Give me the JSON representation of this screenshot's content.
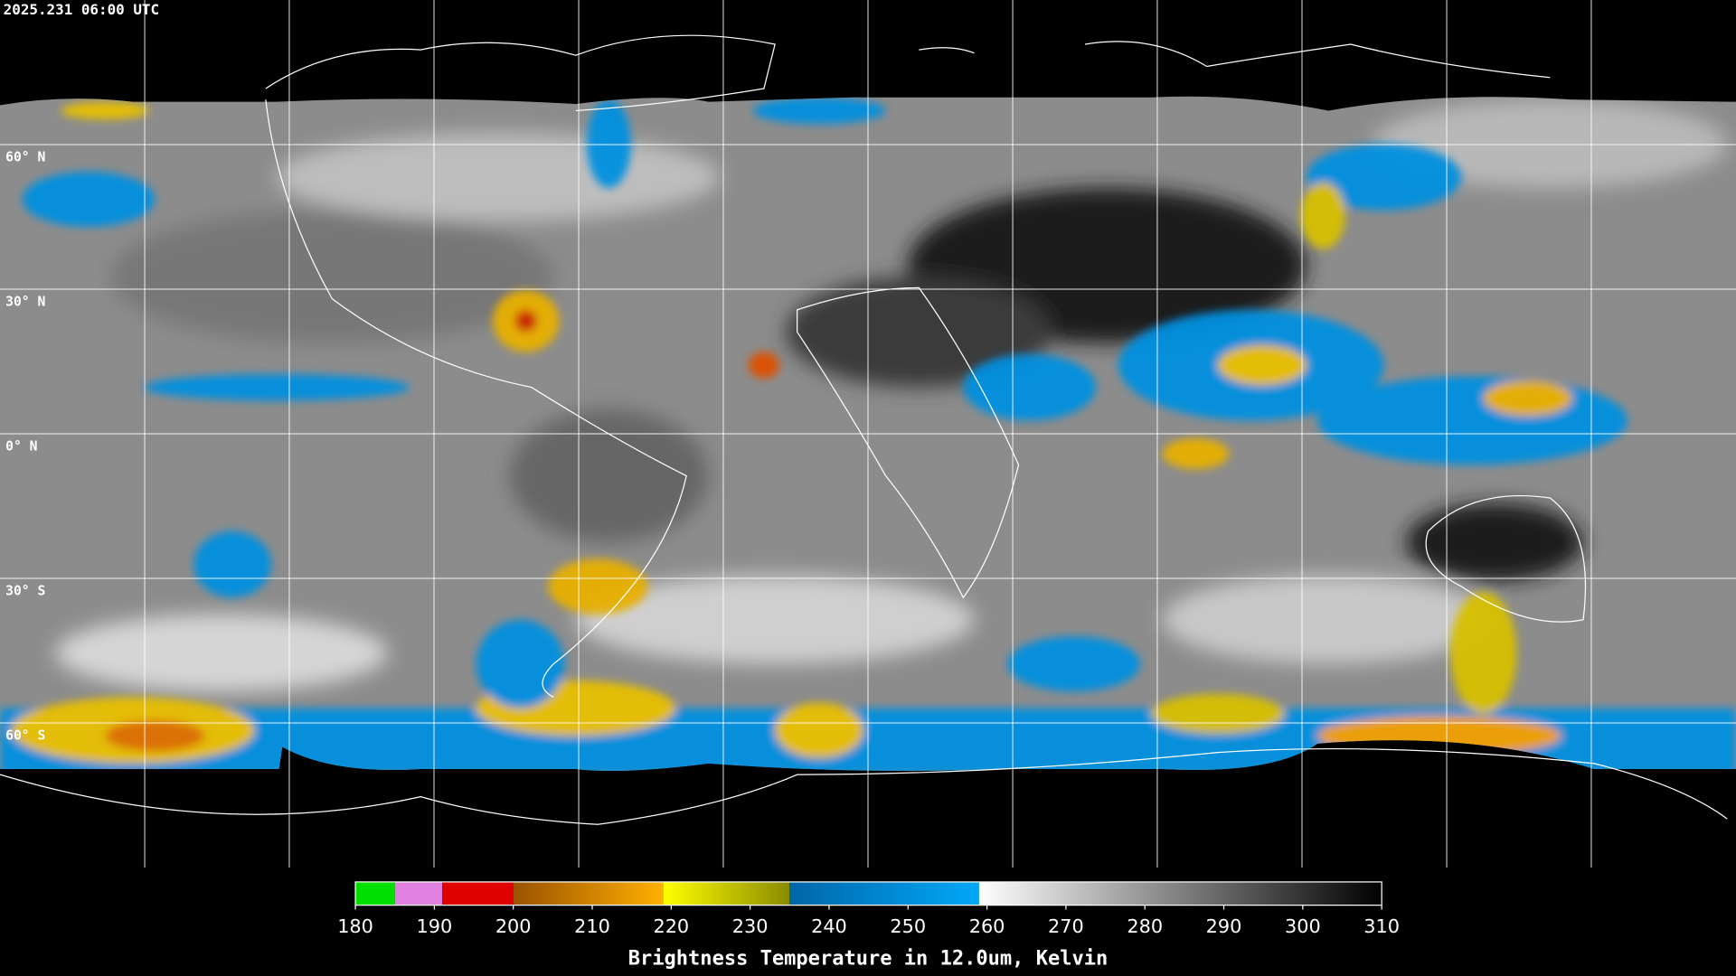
{
  "timestamp": "2025.231 06:00 UTC",
  "latitudes": [
    {
      "value": 60,
      "label": "60° N"
    },
    {
      "value": 30,
      "label": "30° N"
    },
    {
      "value": 0,
      "label": "0° N"
    },
    {
      "value": -30,
      "label": "30° S"
    },
    {
      "value": -60,
      "label": "60° S"
    }
  ],
  "colorbar": {
    "title": "Brightness Temperature in 12.0um, Kelvin",
    "lim": [
      180,
      310
    ],
    "ticks": [
      180,
      190,
      200,
      210,
      220,
      230,
      240,
      250,
      260,
      270,
      280,
      290,
      300,
      310
    ],
    "segments": [
      {
        "from": 180,
        "to": 185,
        "color": "#00e000",
        "color_end": "#00e000"
      },
      {
        "from": 185,
        "to": 191,
        "color": "#e080e0",
        "color_end": "#e080e0"
      },
      {
        "from": 191,
        "to": 200,
        "color": "#e00000",
        "color_end": "#e00000"
      },
      {
        "from": 200,
        "to": 219,
        "color": "#9a5200",
        "color_end": "#ffb000"
      },
      {
        "from": 219,
        "to": 235,
        "color": "#ffff00",
        "color_end": "#8a8a00"
      },
      {
        "from": 235,
        "to": 259,
        "color": "#0066a8",
        "color_end": "#00a8f8"
      },
      {
        "from": 259,
        "to": 310,
        "color": "#ffffff",
        "color_end": "#000000"
      }
    ]
  }
}
